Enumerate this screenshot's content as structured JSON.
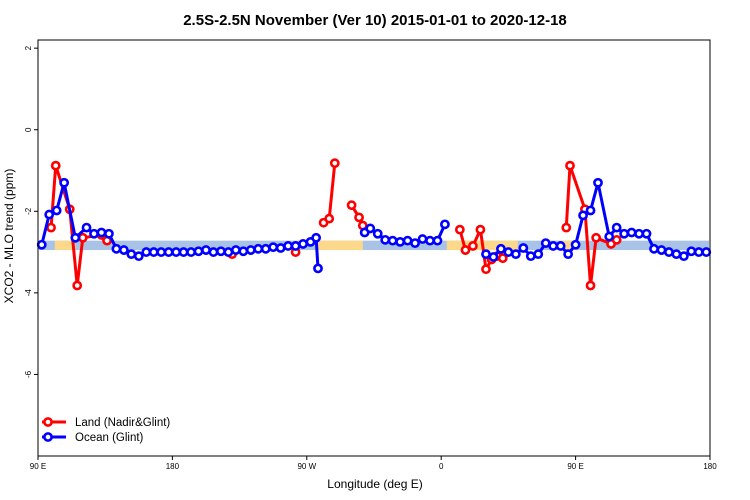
{
  "chart_data": {
    "type": "line",
    "title": "2.5S-2.5N November (Ver 10)   2015-01-01 to 2020-12-18",
    "xlabel": "Longitude (deg E)",
    "ylabel": "XCO2 - MLO trend (ppm)",
    "xlim": [
      90,
      450
    ],
    "ylim": [
      -8,
      2.2
    ],
    "x_ticks": [
      {
        "value": 90,
        "label": "90 E"
      },
      {
        "value": 162,
        "label": "180"
      },
      {
        "value": 234,
        "label": "90 W"
      },
      {
        "value": 306,
        "label": "0"
      },
      {
        "value": 378,
        "label": "90 E"
      },
      {
        "value": 450,
        "label": "180"
      }
    ],
    "y_ticks": [
      {
        "value": 2,
        "label": "2"
      },
      {
        "value": 0,
        "label": "0"
      },
      {
        "value": -2,
        "label": "-2"
      },
      {
        "value": -4,
        "label": "-4"
      },
      {
        "value": -6,
        "label": "-6"
      }
    ],
    "land_band": {
      "y_top": -2.72,
      "y_bottom": -2.95,
      "ocean_color": "#a9c3e6",
      "land_color": "#fcd98a"
    },
    "land_regions": [
      [
        99,
        110
      ],
      [
        240,
        264
      ],
      [
        309,
        347
      ],
      [
        370,
        379
      ]
    ],
    "legend_position": "bottom-left",
    "series": [
      {
        "name": "Land (Nadir&Glint)",
        "color": "#ff0000",
        "segments": [
          [
            [
              97,
              -2.4
            ],
            [
              99.5,
              -0.88
            ],
            [
              107,
              -1.95
            ],
            [
              111,
              -3.82
            ],
            [
              114,
              -2.65
            ],
            [
              124,
              -2.58
            ]
          ],
          [
            [
              127,
              -2.72
            ]
          ],
          [
            [
              194,
              -3.05
            ]
          ],
          [
            [
              228,
              -3.0
            ]
          ],
          [
            [
              243,
              -2.28
            ],
            [
              246,
              -2.18
            ],
            [
              249,
              -0.82
            ]
          ],
          [
            [
              258,
              -1.85
            ],
            [
              262,
              -2.15
            ],
            [
              264,
              -2.35
            ]
          ],
          [
            [
              316,
              -2.45
            ],
            [
              319,
              -2.95
            ],
            [
              323,
              -2.85
            ],
            [
              327,
              -2.45
            ],
            [
              330,
              -3.42
            ],
            [
              333,
              -3.18
            ],
            [
              336,
              -3.1
            ],
            [
              339,
              -3.15
            ]
          ],
          [
            [
              373,
              -2.4
            ],
            [
              375,
              -0.88
            ],
            [
              383,
              -1.95
            ],
            [
              386,
              -3.82
            ],
            [
              389,
              -2.65
            ],
            [
              397,
              -2.8
            ],
            [
              400,
              -2.7
            ]
          ]
        ]
      },
      {
        "name": "Ocean (Glint)",
        "color": "#0000ff",
        "segments": [
          [
            [
              92,
              -2.82
            ],
            [
              96,
              -2.08
            ],
            [
              100,
              -1.98
            ],
            [
              104,
              -1.3
            ],
            [
              110,
              -2.65
            ],
            [
              116,
              -2.4
            ],
            [
              120,
              -2.55
            ],
            [
              124,
              -2.52
            ],
            [
              128,
              -2.55
            ],
            [
              132,
              -2.92
            ],
            [
              136,
              -2.95
            ],
            [
              140,
              -3.05
            ],
            [
              144,
              -3.1
            ],
            [
              148,
              -3.0
            ],
            [
              152,
              -3.0
            ],
            [
              156,
              -3.0
            ],
            [
              160,
              -3.0
            ],
            [
              164,
              -3.0
            ],
            [
              168,
              -3.0
            ],
            [
              172,
              -3.0
            ],
            [
              176,
              -2.98
            ],
            [
              180,
              -2.95
            ],
            [
              184,
              -3.0
            ],
            [
              188,
              -2.98
            ],
            [
              192,
              -3.0
            ],
            [
              196,
              -2.95
            ],
            [
              200,
              -2.98
            ],
            [
              204,
              -2.95
            ],
            [
              208,
              -2.92
            ],
            [
              212,
              -2.92
            ],
            [
              216,
              -2.88
            ],
            [
              220,
              -2.9
            ],
            [
              224,
              -2.85
            ],
            [
              228,
              -2.85
            ],
            [
              232,
              -2.8
            ],
            [
              236,
              -2.75
            ],
            [
              239,
              -2.65
            ],
            [
              240,
              -3.4
            ]
          ],
          [
            [
              265,
              -2.52
            ],
            [
              268,
              -2.42
            ],
            [
              272,
              -2.55
            ],
            [
              276,
              -2.7
            ],
            [
              280,
              -2.72
            ],
            [
              284,
              -2.75
            ],
            [
              288,
              -2.72
            ],
            [
              292,
              -2.78
            ],
            [
              296,
              -2.68
            ],
            [
              300,
              -2.72
            ],
            [
              304,
              -2.72
            ],
            [
              308,
              -2.32
            ]
          ],
          [
            [
              330,
              -3.05
            ],
            [
              334,
              -3.12
            ],
            [
              338,
              -2.92
            ],
            [
              342,
              -3.0
            ],
            [
              346,
              -3.05
            ],
            [
              350,
              -2.9
            ],
            [
              354,
              -3.1
            ],
            [
              358,
              -3.05
            ],
            [
              362,
              -2.78
            ],
            [
              366,
              -2.85
            ],
            [
              370,
              -2.85
            ],
            [
              374,
              -3.05
            ],
            [
              378,
              -2.82
            ],
            [
              382,
              -2.1
            ],
            [
              386,
              -1.98
            ],
            [
              390,
              -1.3
            ],
            [
              396,
              -2.62
            ],
            [
              400,
              -2.4
            ],
            [
              404,
              -2.55
            ],
            [
              408,
              -2.52
            ],
            [
              412,
              -2.55
            ],
            [
              416,
              -2.55
            ],
            [
              420,
              -2.92
            ],
            [
              424,
              -2.95
            ],
            [
              428,
              -3.0
            ],
            [
              432,
              -3.05
            ],
            [
              436,
              -3.1
            ],
            [
              440,
              -2.98
            ],
            [
              444,
              -3.0
            ],
            [
              448,
              -3.0
            ]
          ]
        ]
      }
    ]
  }
}
